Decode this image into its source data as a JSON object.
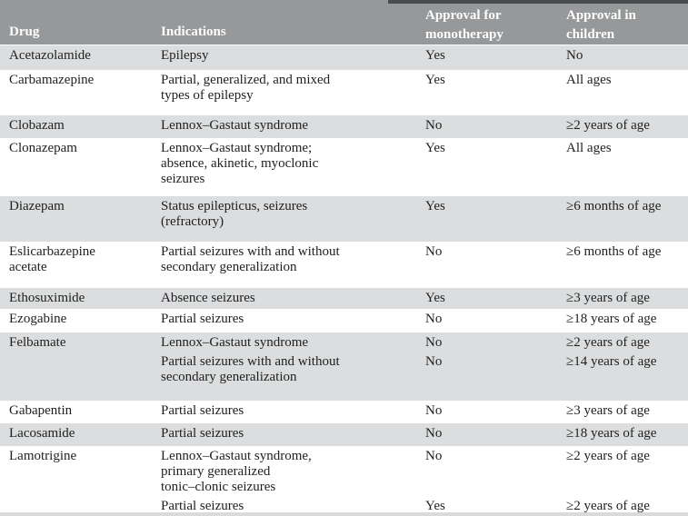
{
  "table": {
    "columns": [
      {
        "label": "Drug"
      },
      {
        "label": "Indications"
      },
      {
        "label": "Approval for\nmonotherapy"
      },
      {
        "label": "Approval in\nchildren"
      }
    ],
    "rows": [
      {
        "drug": "Acetazolamide",
        "entries": [
          {
            "indication": "Epilepsy",
            "monotherapy": "Yes",
            "children": "No"
          }
        ]
      },
      {
        "drug": "Carbamazepine",
        "entries": [
          {
            "indication": "Partial, generalized, and mixed\ntypes of epilepsy",
            "monotherapy": "Yes",
            "children": "All ages"
          }
        ]
      },
      {
        "drug": "Clobazam",
        "entries": [
          {
            "indication": "Lennox–Gastaut syndrome",
            "monotherapy": "No",
            "children": "≥2 years of age"
          }
        ]
      },
      {
        "drug": "Clonazepam",
        "entries": [
          {
            "indication": "Lennox–Gastaut syndrome;\nabsence, akinetic, myoclonic\nseizures",
            "monotherapy": "Yes",
            "children": "All ages"
          }
        ]
      },
      {
        "drug": "Diazepam",
        "entries": [
          {
            "indication": "Status epilepticus, seizures\n(refractory)",
            "monotherapy": "Yes",
            "children": "≥6 months of age"
          }
        ]
      },
      {
        "drug": "Eslicarbazepine\nacetate",
        "entries": [
          {
            "indication": "Partial seizures with and without\nsecondary generalization",
            "monotherapy": "No",
            "children": "≥6 months of age"
          }
        ]
      },
      {
        "drug": "Ethosuximide",
        "entries": [
          {
            "indication": "Absence seizures",
            "monotherapy": "Yes",
            "children": "≥3 years of age"
          }
        ]
      },
      {
        "drug": "Ezogabine",
        "entries": [
          {
            "indication": "Partial seizures",
            "monotherapy": "No",
            "children": "≥18 years of age"
          }
        ]
      },
      {
        "drug": "Felbamate",
        "entries": [
          {
            "indication": "Lennox–Gastaut syndrome",
            "monotherapy": "No",
            "children": "≥2 years of age"
          },
          {
            "indication": "Partial seizures with and without\nsecondary generalization",
            "monotherapy": "No",
            "children": "≥14 years of age"
          }
        ]
      },
      {
        "drug": "Gabapentin",
        "entries": [
          {
            "indication": "Partial seizures",
            "monotherapy": "No",
            "children": "≥3 years of age"
          }
        ]
      },
      {
        "drug": "Lacosamide",
        "entries": [
          {
            "indication": "Partial seizures",
            "monotherapy": "No",
            "children": "≥18 years of age"
          }
        ]
      },
      {
        "drug": "Lamotrigine",
        "entries": [
          {
            "indication": "Lennox–Gastaut syndrome,\nprimary generalized\ntonic–clonic seizures",
            "monotherapy": "No",
            "children": "≥2 years of age"
          },
          {
            "indication": "Partial seizures",
            "monotherapy": "Yes",
            "children": "≥2 years of age"
          }
        ]
      }
    ],
    "colors": {
      "header_bg": "#97989a",
      "header_text": "#fdfdfd",
      "row_alt_bg": "#dcddde",
      "row_bg": "#ffffff",
      "body_text": "#1f1f1f",
      "top_strip": "#4a4b4d",
      "bottom_strip": "#d9dadb"
    }
  }
}
